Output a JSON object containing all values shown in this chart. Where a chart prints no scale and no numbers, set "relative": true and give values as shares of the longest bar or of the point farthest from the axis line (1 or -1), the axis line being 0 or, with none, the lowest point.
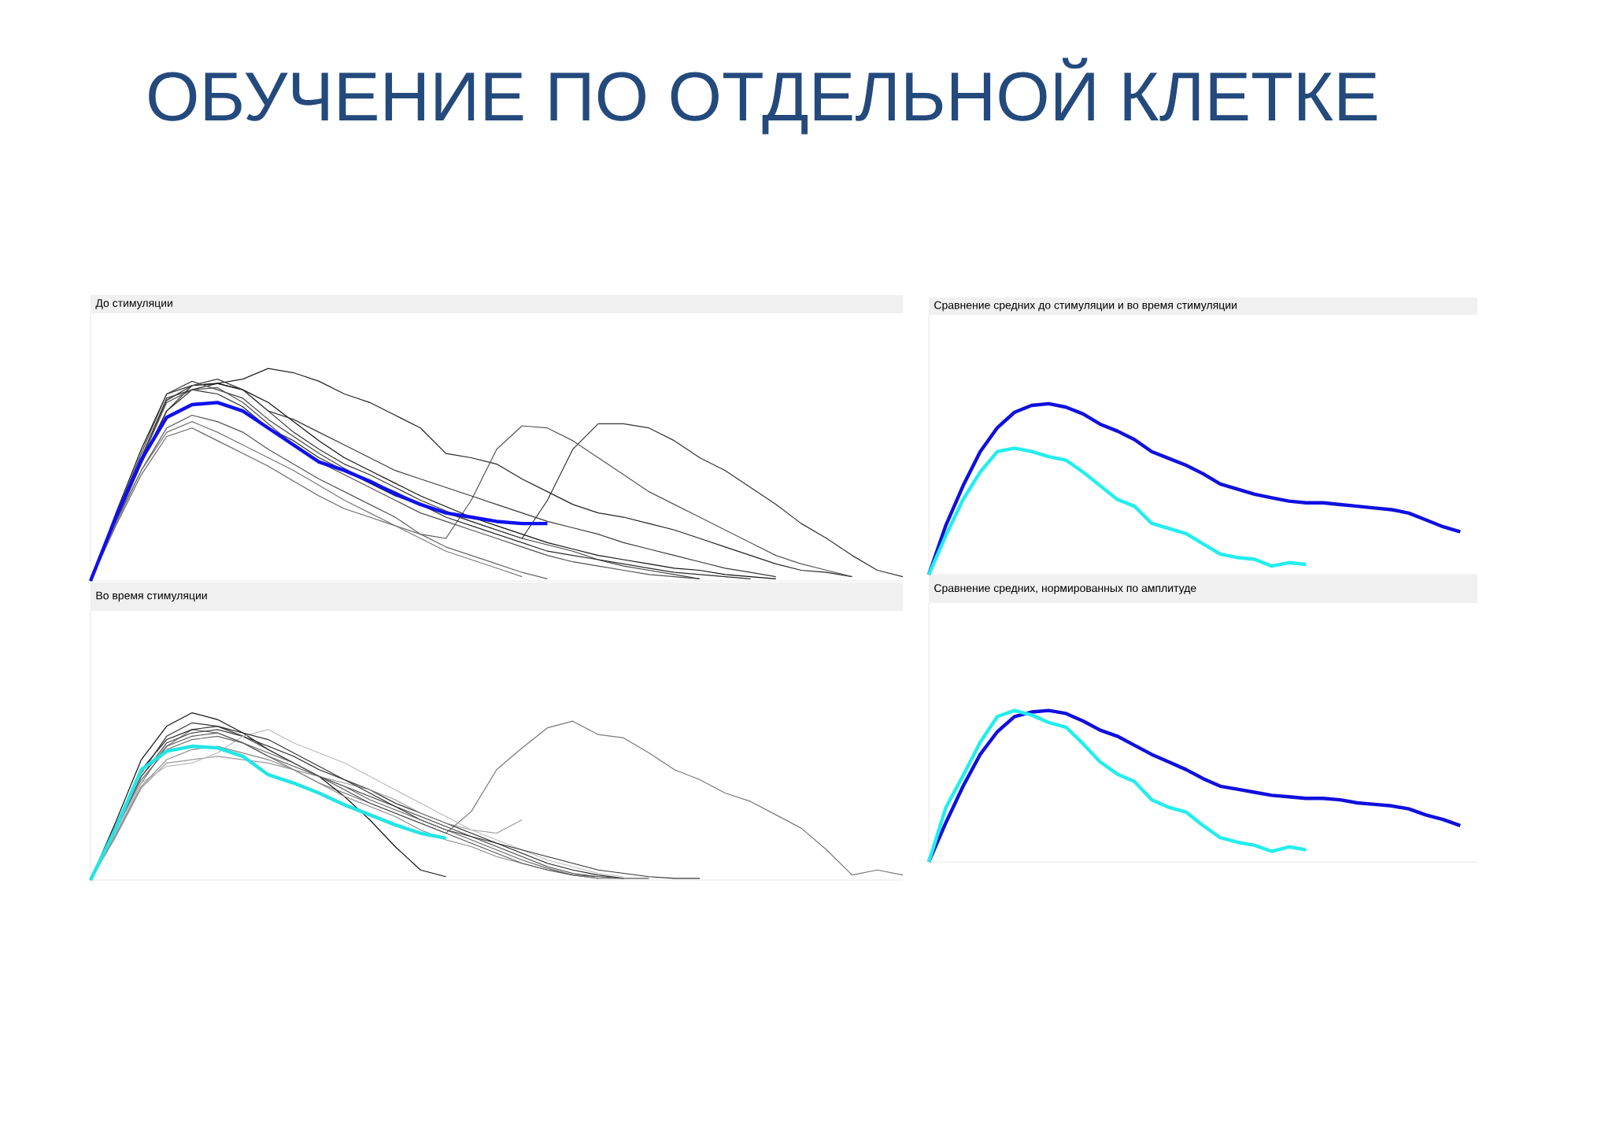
{
  "chart_data": [
    {
      "type": "line",
      "title": "До стимуляции",
      "relative": true,
      "annotations": [
        "ОБУЧЕНИЕ ПО ОТДЕЛЬНОЙ КЛЕТКЕ"
      ],
      "categories": [
        null,
        null,
        null,
        null,
        null,
        null,
        null,
        null,
        null,
        null,
        null,
        null,
        null,
        null,
        null,
        null,
        null,
        null,
        null,
        null,
        null,
        null,
        null,
        null,
        null,
        null,
        null,
        null,
        null,
        null,
        null,
        null,
        null
      ],
      "series": [
        {
          "color": "#222222",
          "values": [
            0,
            0.3,
            0.56,
            0.8,
            0.9,
            0.93,
            0.95,
            1.0,
            0.98,
            0.94,
            0.88,
            0.84,
            0.78,
            0.72,
            0.6,
            0.58,
            0.55,
            0.48,
            0.42,
            0.36,
            0.32,
            0.3,
            0.27,
            0.24,
            0.2,
            0.16,
            0.12,
            0.08,
            0.05,
            0.04,
            0.02,
            null,
            null
          ]
        },
        {
          "color": "#333333",
          "values": [
            0,
            0.28,
            0.55,
            0.8,
            0.92,
            0.93,
            0.9,
            0.8,
            0.7,
            0.62,
            0.55,
            0.5,
            0.44,
            0.38,
            0.33,
            0.28,
            0.24,
            0.2,
            0.38,
            0.62,
            0.74,
            0.74,
            0.72,
            0.66,
            0.58,
            0.52,
            0.44,
            0.36,
            0.27,
            0.2,
            0.12,
            0.05,
            0.02
          ]
        },
        {
          "color": "#555555",
          "values": [
            0,
            0.28,
            0.52,
            0.72,
            0.78,
            0.75,
            0.7,
            0.62,
            0.55,
            0.48,
            0.42,
            0.36,
            0.3,
            0.22,
            0.2,
            0.38,
            0.62,
            0.73,
            0.72,
            0.66,
            0.58,
            0.5,
            0.42,
            0.36,
            0.3,
            0.24,
            0.18,
            0.12,
            0.08,
            0.05,
            0.02,
            null,
            null
          ]
        },
        {
          "color": "#111111",
          "values": [
            0,
            0.32,
            0.62,
            0.88,
            0.92,
            0.93,
            0.9,
            0.84,
            0.75,
            0.66,
            0.58,
            0.52,
            0.46,
            0.4,
            0.35,
            0.3,
            0.26,
            0.22,
            0.18,
            0.15,
            0.12,
            0.1,
            0.08,
            0.06,
            0.05,
            0.03,
            0.02,
            0.01,
            null,
            null,
            null,
            null,
            null
          ]
        },
        {
          "color": "#444444",
          "values": [
            0,
            0.31,
            0.6,
            0.88,
            0.94,
            0.9,
            0.86,
            0.76,
            0.68,
            0.6,
            0.53,
            0.47,
            0.42,
            0.36,
            0.32,
            0.28,
            0.24,
            0.2,
            0.17,
            0.14,
            0.1,
            0.07,
            0.05,
            0.03,
            0.01,
            null,
            null,
            null,
            null,
            null,
            null,
            null,
            null
          ]
        },
        {
          "color": "#666666",
          "values": [
            0,
            0.26,
            0.5,
            0.68,
            0.72,
            0.66,
            0.6,
            0.54,
            0.47,
            0.4,
            0.34,
            0.3,
            0.26,
            0.22,
            0.16,
            0.12,
            0.08,
            0.04,
            0.01,
            null,
            null,
            null,
            null,
            null,
            null,
            null,
            null,
            null,
            null,
            null,
            null,
            null,
            null
          ]
        },
        {
          "color": "#777777",
          "values": [
            0,
            0.27,
            0.52,
            0.7,
            0.75,
            0.7,
            0.64,
            0.58,
            0.52,
            0.45,
            0.38,
            0.32,
            0.26,
            0.2,
            0.14,
            0.1,
            0.06,
            0.02,
            null,
            null,
            null,
            null,
            null,
            null,
            null,
            null,
            null,
            null,
            null,
            null,
            null,
            null,
            null
          ]
        },
        {
          "color": "#2b2b2b",
          "values": [
            0,
            0.3,
            0.58,
            0.86,
            0.9,
            0.88,
            0.82,
            0.72,
            0.66,
            0.58,
            0.52,
            0.46,
            0.4,
            0.36,
            0.3,
            0.26,
            0.22,
            0.18,
            0.14,
            0.12,
            0.1,
            0.08,
            0.06,
            0.04,
            0.03,
            0.02,
            0.01,
            null,
            null,
            null,
            null,
            null,
            null
          ]
        },
        {
          "color": "#505050",
          "values": [
            0,
            0.29,
            0.57,
            0.84,
            0.9,
            0.91,
            0.84,
            0.74,
            0.64,
            0.56,
            0.5,
            0.44,
            0.38,
            0.32,
            0.28,
            0.24,
            0.2,
            0.16,
            0.12,
            0.09,
            0.07,
            0.05,
            0.03,
            0.02,
            0.01,
            null,
            null,
            null,
            null,
            null,
            null,
            null,
            null
          ]
        },
        {
          "color": "#3a3a3a",
          "values": [
            0,
            0.3,
            0.58,
            0.85,
            0.92,
            0.95,
            0.9,
            0.8,
            0.76,
            0.7,
            0.64,
            0.58,
            0.52,
            0.48,
            0.44,
            0.4,
            0.36,
            0.32,
            0.28,
            0.25,
            0.22,
            0.18,
            0.15,
            0.12,
            0.09,
            0.06,
            0.04,
            0.02,
            null,
            null,
            null,
            null,
            null
          ]
        },
        {
          "color": "#1010ee",
          "values": [
            0,
            0.3,
            0.57,
            0.77,
            0.83,
            0.84,
            0.8,
            0.72,
            0.64,
            0.56,
            0.52,
            0.47,
            0.41,
            0.36,
            0.32,
            0.3,
            0.28,
            0.27,
            0.27,
            null,
            null,
            null,
            null,
            null,
            null,
            null,
            null,
            null,
            null,
            null,
            null,
            null,
            null
          ]
        }
      ]
    },
    {
      "type": "line",
      "title": "Во время стимуляции",
      "relative": true,
      "categories": [
        null,
        null,
        null,
        null,
        null,
        null,
        null,
        null,
        null,
        null,
        null,
        null,
        null,
        null,
        null,
        null,
        null,
        null,
        null,
        null,
        null,
        null,
        null,
        null,
        null,
        null,
        null,
        null,
        null,
        null,
        null,
        null,
        null
      ],
      "series": [
        {
          "color": "#777777",
          "values": [
            0,
            0.28,
            0.58,
            0.8,
            0.9,
            0.88,
            0.82,
            0.74,
            0.66,
            0.58,
            0.52,
            0.46,
            0.4,
            0.34,
            0.28,
            0.41,
            0.66,
            0.79,
            0.91,
            0.95,
            0.87,
            0.85,
            0.76,
            0.66,
            0.6,
            0.52,
            0.47,
            0.39,
            0.31,
            0.18,
            0.03,
            0.06,
            0.03
          ]
        },
        {
          "color": "#111111",
          "values": [
            0,
            0.35,
            0.72,
            0.92,
            1.0,
            0.96,
            0.88,
            0.78,
            0.7,
            0.62,
            0.5,
            0.36,
            0.2,
            0.06,
            0.02,
            null,
            null,
            null,
            null,
            null,
            null,
            null,
            null,
            null,
            null,
            null,
            null,
            null,
            null,
            null,
            null,
            null,
            null
          ]
        },
        {
          "color": "#222222",
          "values": [
            0,
            0.33,
            0.66,
            0.84,
            0.9,
            0.92,
            0.86,
            0.8,
            0.74,
            0.66,
            0.6,
            0.54,
            0.46,
            0.4,
            0.34,
            0.28,
            0.22,
            0.16,
            0.1,
            0.06,
            0.03,
            0.01,
            null,
            null,
            null,
            null,
            null,
            null,
            null,
            null,
            null,
            null,
            null
          ]
        },
        {
          "color": "#444444",
          "values": [
            0,
            0.3,
            0.62,
            0.82,
            0.88,
            0.9,
            0.86,
            0.78,
            0.7,
            0.62,
            0.56,
            0.5,
            0.44,
            0.38,
            0.32,
            0.26,
            0.2,
            0.14,
            0.08,
            0.04,
            0.02,
            null,
            null,
            null,
            null,
            null,
            null,
            null,
            null,
            null,
            null,
            null,
            null
          ]
        },
        {
          "color": "#999999",
          "values": [
            0,
            0.26,
            0.55,
            0.7,
            0.72,
            0.74,
            0.72,
            0.7,
            0.66,
            0.62,
            0.58,
            0.54,
            0.48,
            0.4,
            0.34,
            0.3,
            0.28,
            0.36,
            null,
            null,
            null,
            null,
            null,
            null,
            null,
            null,
            null,
            null,
            null,
            null,
            null,
            null,
            null
          ]
        },
        {
          "color": "#bbbbbb",
          "values": [
            0,
            0.28,
            0.58,
            0.68,
            0.7,
            0.76,
            0.86,
            0.9,
            0.82,
            0.76,
            0.7,
            0.62,
            0.54,
            0.46,
            0.38,
            0.3,
            0.24,
            0.18,
            0.12,
            0.08,
            0.04,
            0.02,
            null,
            null,
            null,
            null,
            null,
            null,
            null,
            null,
            null,
            null,
            null
          ]
        },
        {
          "color": "#333333",
          "values": [
            0,
            0.32,
            0.64,
            0.86,
            0.94,
            0.92,
            0.88,
            0.84,
            0.76,
            0.68,
            0.6,
            0.52,
            0.44,
            0.36,
            0.3,
            0.26,
            0.22,
            0.18,
            0.14,
            0.1,
            0.06,
            0.04,
            0.02,
            0.01,
            0.01,
            null,
            null,
            null,
            null,
            null,
            null,
            null,
            null
          ]
        },
        {
          "color": "#666666",
          "values": [
            0,
            0.3,
            0.6,
            0.78,
            0.84,
            0.86,
            0.82,
            0.76,
            0.7,
            0.62,
            0.56,
            0.48,
            0.42,
            0.36,
            0.3,
            0.24,
            0.18,
            0.12,
            0.07,
            0.03,
            0.01,
            null,
            null,
            null,
            null,
            null,
            null,
            null,
            null,
            null,
            null,
            null,
            null
          ]
        },
        {
          "color": "#888888",
          "values": [
            0,
            0.27,
            0.56,
            0.72,
            0.78,
            0.8,
            0.76,
            0.72,
            0.66,
            0.58,
            0.5,
            0.44,
            0.38,
            0.3,
            0.24,
            0.2,
            0.14,
            0.1,
            0.06,
            0.03,
            0.01,
            0.01,
            null,
            null,
            null,
            null,
            null,
            null,
            null,
            null,
            null,
            null,
            null
          ]
        },
        {
          "color": "#555555",
          "values": [
            0,
            0.31,
            0.62,
            0.8,
            0.86,
            0.88,
            0.82,
            0.74,
            0.68,
            0.62,
            0.54,
            0.46,
            0.4,
            0.34,
            0.28,
            0.22,
            0.16,
            0.1,
            0.06,
            0.03,
            0.02,
            0.01,
            0.01,
            null,
            null,
            null,
            null,
            null,
            null,
            null,
            null,
            null,
            null
          ]
        },
        {
          "color": "#22e5e5",
          "values": [
            0,
            0.31,
            0.66,
            0.77,
            0.8,
            0.79,
            0.74,
            0.63,
            0.58,
            0.52,
            0.45,
            0.39,
            0.33,
            0.28,
            0.25,
            null,
            null,
            null,
            null,
            null,
            null,
            null,
            null,
            null,
            null,
            null,
            null,
            null,
            null,
            null,
            null,
            null,
            null
          ]
        }
      ]
    },
    {
      "type": "line",
      "title": "Сравнение средних до стимуляции и во время стимуляции",
      "relative": true,
      "categories": [
        null,
        null,
        null,
        null,
        null,
        null,
        null,
        null,
        null,
        null,
        null,
        null,
        null,
        null,
        null,
        null,
        null,
        null,
        null,
        null,
        null,
        null,
        null,
        null,
        null,
        null,
        null,
        null,
        null,
        null,
        null,
        null,
        null
      ],
      "series": [
        {
          "color": "#1010dd",
          "values": [
            0,
            0.29,
            0.52,
            0.72,
            0.86,
            0.95,
            0.99,
            1.0,
            0.98,
            0.94,
            0.88,
            0.84,
            0.79,
            0.72,
            0.68,
            0.64,
            0.59,
            0.53,
            0.5,
            0.47,
            0.45,
            0.43,
            0.42,
            0.42,
            0.41,
            0.4,
            0.39,
            0.38,
            0.36,
            0.32,
            0.28,
            0.25,
            null
          ]
        },
        {
          "color": "#22eeee",
          "values": [
            0,
            0.23,
            0.44,
            0.6,
            0.72,
            0.74,
            0.72,
            0.69,
            0.67,
            0.6,
            0.52,
            0.44,
            0.4,
            0.3,
            0.27,
            0.24,
            0.18,
            0.12,
            0.1,
            0.09,
            0.05,
            0.07,
            0.06,
            null,
            null,
            null,
            null,
            null,
            null,
            null,
            null,
            null,
            null
          ]
        }
      ]
    },
    {
      "type": "line",
      "title": "Сравнение средних, нормированных по амплитуде",
      "relative": true,
      "categories": [
        null,
        null,
        null,
        null,
        null,
        null,
        null,
        null,
        null,
        null,
        null,
        null,
        null,
        null,
        null,
        null,
        null,
        null,
        null,
        null,
        null,
        null,
        null,
        null,
        null,
        null,
        null,
        null,
        null,
        null,
        null,
        null,
        null
      ],
      "series": [
        {
          "color": "#1010dd",
          "values": [
            0,
            0.26,
            0.5,
            0.71,
            0.86,
            0.96,
            0.99,
            1.0,
            0.98,
            0.93,
            0.87,
            0.83,
            0.77,
            0.71,
            0.66,
            0.61,
            0.55,
            0.5,
            0.48,
            0.46,
            0.44,
            0.43,
            0.42,
            0.42,
            0.41,
            0.39,
            0.38,
            0.37,
            0.35,
            0.31,
            0.28,
            0.24,
            null
          ]
        },
        {
          "color": "#22eeee",
          "values": [
            0,
            0.36,
            0.57,
            0.79,
            0.96,
            1.0,
            0.97,
            0.92,
            0.89,
            0.78,
            0.66,
            0.58,
            0.53,
            0.41,
            0.36,
            0.33,
            0.24,
            0.16,
            0.13,
            0.11,
            0.07,
            0.1,
            0.08,
            null,
            null,
            null,
            null,
            null,
            null,
            null,
            null,
            null,
            null
          ]
        }
      ]
    }
  ]
}
